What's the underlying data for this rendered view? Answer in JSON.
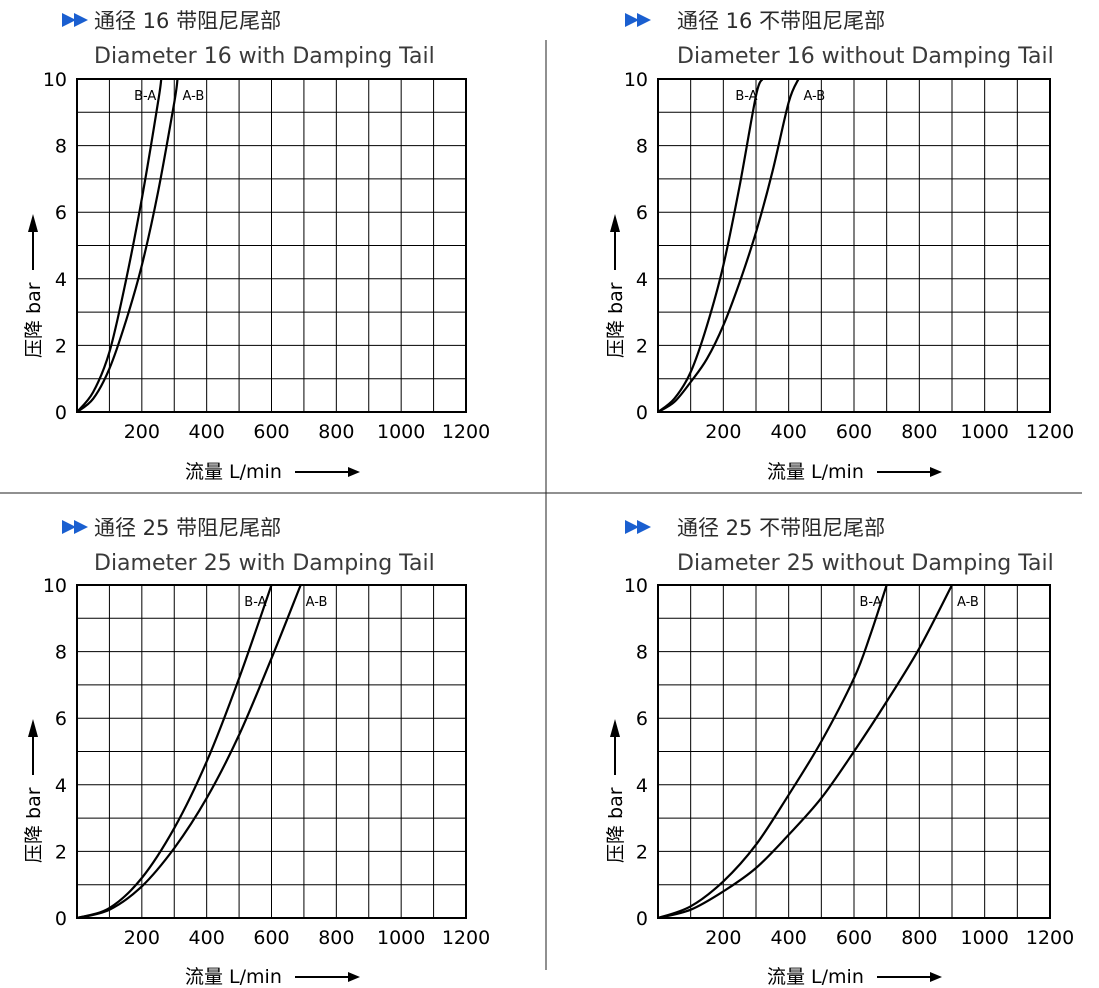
{
  "accent_color": "#1a5fd0",
  "chart_data": [
    {
      "type": "line",
      "title": "通径 16 带阻尼尾部",
      "subtitle": "Diameter 16 with Damping Tail",
      "xlabel": "流量 L/min",
      "ylabel": "压降 bar",
      "xlim": [
        0,
        1200
      ],
      "ylim": [
        0,
        10
      ],
      "xticks": [
        "200",
        "400",
        "600",
        "800",
        "1000",
        "1200"
      ],
      "yticks": [
        "0",
        "2",
        "4",
        "6",
        "8",
        "10"
      ],
      "grid": true,
      "series": [
        {
          "name": "B-A",
          "x": [
            0,
            50,
            100,
            150,
            200,
            250,
            260
          ],
          "y": [
            0,
            0.6,
            1.8,
            3.9,
            6.4,
            9.3,
            10
          ]
        },
        {
          "name": "A-B",
          "x": [
            0,
            50,
            100,
            150,
            200,
            250,
            300,
            310
          ],
          "y": [
            0,
            0.4,
            1.3,
            2.7,
            4.4,
            6.6,
            9.3,
            10
          ]
        }
      ]
    },
    {
      "type": "line",
      "title": "通径 16 不带阻尼尾部",
      "subtitle": "Diameter 16 without Damping Tail",
      "xlabel": "流量 L/min",
      "ylabel": "压降 bar",
      "xlim": [
        0,
        1200
      ],
      "ylim": [
        0,
        10
      ],
      "xticks": [
        "200",
        "400",
        "600",
        "800",
        "1000",
        "1200"
      ],
      "yticks": [
        "0",
        "2",
        "4",
        "6",
        "8",
        "10"
      ],
      "grid": true,
      "series": [
        {
          "name": "B-A",
          "x": [
            0,
            50,
            100,
            150,
            200,
            250,
            300,
            320
          ],
          "y": [
            0,
            0.4,
            1.2,
            2.6,
            4.4,
            6.8,
            9.5,
            10
          ]
        },
        {
          "name": "A-B",
          "x": [
            0,
            50,
            100,
            150,
            200,
            250,
            300,
            350,
            400,
            430
          ],
          "y": [
            0,
            0.3,
            0.9,
            1.6,
            2.6,
            3.9,
            5.4,
            7.2,
            9.3,
            10
          ]
        }
      ]
    },
    {
      "type": "line",
      "title": "通径 25 带阻尼尾部",
      "subtitle": "Diameter 25 with Damping Tail",
      "xlabel": "流量 L/min",
      "ylabel": "压降 bar",
      "xlim": [
        0,
        1200
      ],
      "ylim": [
        0,
        10
      ],
      "xticks": [
        "200",
        "400",
        "600",
        "800",
        "1000",
        "1200"
      ],
      "yticks": [
        "0",
        "2",
        "4",
        "6",
        "8",
        "10"
      ],
      "grid": true,
      "series": [
        {
          "name": "B-A",
          "x": [
            0,
            100,
            200,
            300,
            400,
            500,
            600
          ],
          "y": [
            0,
            0.3,
            1.2,
            2.7,
            4.7,
            7.2,
            10
          ]
        },
        {
          "name": "A-B",
          "x": [
            0,
            100,
            200,
            300,
            400,
            500,
            600,
            690
          ],
          "y": [
            0,
            0.25,
            0.95,
            2.1,
            3.6,
            5.5,
            7.8,
            10
          ]
        }
      ]
    },
    {
      "type": "line",
      "title": "通径 25 不带阻尼尾部",
      "subtitle": "Diameter 25 without Damping Tail",
      "xlabel": "流量 L/min",
      "ylabel": "压降 bar",
      "xlim": [
        0,
        1200
      ],
      "ylim": [
        0,
        10
      ],
      "xticks": [
        "200",
        "400",
        "600",
        "800",
        "1000",
        "1200"
      ],
      "yticks": [
        "0",
        "2",
        "4",
        "6",
        "8",
        "10"
      ],
      "grid": true,
      "series": [
        {
          "name": "B-A",
          "x": [
            0,
            100,
            200,
            300,
            400,
            500,
            600,
            650,
            700
          ],
          "y": [
            0,
            0.35,
            1.1,
            2.2,
            3.7,
            5.3,
            7.2,
            8.5,
            10
          ]
        },
        {
          "name": "A-B",
          "x": [
            0,
            100,
            200,
            300,
            400,
            500,
            600,
            700,
            800,
            900
          ],
          "y": [
            0,
            0.25,
            0.8,
            1.5,
            2.5,
            3.6,
            5.0,
            6.5,
            8.1,
            10
          ]
        }
      ]
    }
  ]
}
